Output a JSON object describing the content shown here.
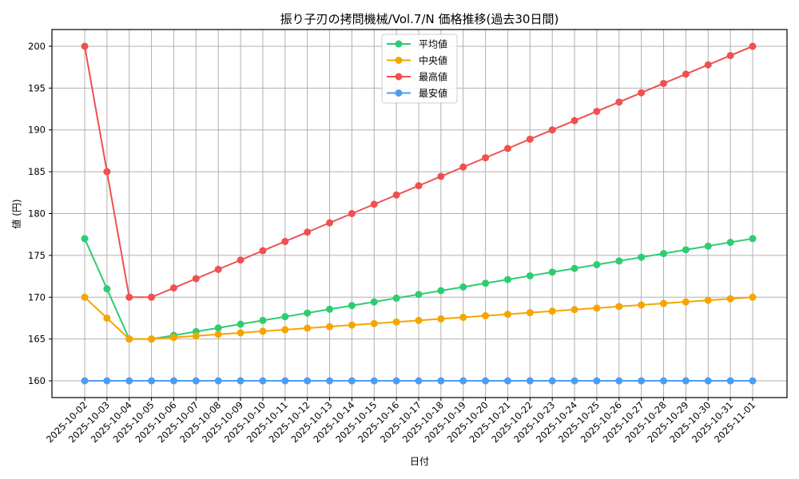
{
  "chart_data": {
    "type": "line",
    "title": "振り子刃の拷問機械/Vol.7/N 価格推移(過去30日間)",
    "xlabel": "日付",
    "ylabel": "値 (円)",
    "ylim": [
      158,
      202
    ],
    "yticks": [
      160,
      165,
      170,
      175,
      180,
      185,
      190,
      195,
      200
    ],
    "grid": true,
    "legend_position": "upper center",
    "categories": [
      "2025-10-02",
      "2025-10-03",
      "2025-10-04",
      "2025-10-05",
      "2025-10-06",
      "2025-10-07",
      "2025-10-08",
      "2025-10-09",
      "2025-10-10",
      "2025-10-11",
      "2025-10-12",
      "2025-10-13",
      "2025-10-14",
      "2025-10-15",
      "2025-10-16",
      "2025-10-17",
      "2025-10-18",
      "2025-10-19",
      "2025-10-20",
      "2025-10-21",
      "2025-10-22",
      "2025-10-23",
      "2025-10-24",
      "2025-10-25",
      "2025-10-26",
      "2025-10-27",
      "2025-10-28",
      "2025-10-29",
      "2025-10-30",
      "2025-10-31",
      "2025-11-01"
    ],
    "series": [
      {
        "name": "平均値",
        "color": "#2ecc71",
        "values": [
          177,
          171,
          165,
          165,
          165.44,
          165.89,
          166.33,
          166.78,
          167.22,
          167.67,
          168.11,
          168.56,
          169,
          169.44,
          169.89,
          170.33,
          170.78,
          171.22,
          171.67,
          172.11,
          172.56,
          173,
          173.44,
          173.89,
          174.33,
          174.78,
          175.22,
          175.67,
          176.11,
          176.56,
          177
        ]
      },
      {
        "name": "中央値",
        "color": "#f5a500",
        "values": [
          170,
          167.5,
          165,
          165,
          165.19,
          165.37,
          165.56,
          165.74,
          165.93,
          166.11,
          166.3,
          166.48,
          166.67,
          166.85,
          167.04,
          167.22,
          167.41,
          167.59,
          167.78,
          167.96,
          168.15,
          168.33,
          168.52,
          168.7,
          168.89,
          169.07,
          169.26,
          169.44,
          169.63,
          169.81,
          170
        ]
      },
      {
        "name": "最高値",
        "color": "#f05050",
        "values": [
          200,
          185,
          170,
          170,
          171.11,
          172.22,
          173.33,
          174.44,
          175.56,
          176.67,
          177.78,
          178.89,
          180,
          181.11,
          182.22,
          183.33,
          184.44,
          185.56,
          186.67,
          187.78,
          188.89,
          190,
          191.11,
          192.22,
          193.33,
          194.44,
          195.56,
          196.67,
          197.78,
          198.89,
          200
        ]
      },
      {
        "name": "最安値",
        "color": "#4d9cf5",
        "values": [
          160,
          160,
          160,
          160,
          160,
          160,
          160,
          160,
          160,
          160,
          160,
          160,
          160,
          160,
          160,
          160,
          160,
          160,
          160,
          160,
          160,
          160,
          160,
          160,
          160,
          160,
          160,
          160,
          160,
          160,
          160
        ]
      }
    ]
  }
}
